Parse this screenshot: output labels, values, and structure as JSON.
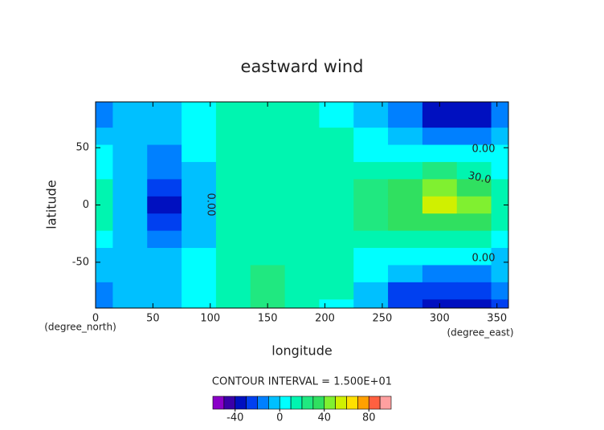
{
  "chart_data": {
    "type": "contour",
    "title": "eastward wind",
    "x_label": "longitude",
    "y_label": "latitude",
    "x_units": "(degree_east)",
    "y_units": "(degree_north)",
    "contour_interval": "CONTOUR INTERVAL = 1.500E+01",
    "x": [
      0,
      30,
      60,
      90,
      120,
      150,
      180,
      210,
      240,
      270,
      300,
      330,
      360
    ],
    "y": [
      90,
      75,
      60,
      45,
      30,
      15,
      0,
      -15,
      -30,
      -45,
      -60,
      -75,
      -90
    ],
    "z": [
      [
        -15,
        -8,
        -5,
        0,
        12,
        15,
        15,
        8,
        -5,
        -20,
        -35,
        -40,
        -20
      ],
      [
        -12,
        -5,
        -5,
        2,
        12,
        18,
        15,
        8,
        -5,
        -18,
        -32,
        -35,
        -18
      ],
      [
        -5,
        -3,
        -8,
        2,
        12,
        18,
        15,
        10,
        0,
        -8,
        -15,
        -15,
        -8
      ],
      [
        0,
        -5,
        -15,
        0,
        12,
        18,
        15,
        12,
        8,
        5,
        2,
        5,
        0
      ],
      [
        5,
        -5,
        -20,
        -5,
        10,
        18,
        15,
        12,
        15,
        18,
        20,
        18,
        8
      ],
      [
        10,
        -5,
        -30,
        -5,
        10,
        18,
        15,
        12,
        20,
        30,
        40,
        35,
        15
      ],
      [
        12,
        -5,
        -35,
        -5,
        10,
        18,
        15,
        12,
        22,
        35,
        55,
        45,
        15
      ],
      [
        10,
        -5,
        -28,
        -5,
        10,
        18,
        15,
        12,
        20,
        30,
        38,
        32,
        12
      ],
      [
        3,
        -5,
        -18,
        -3,
        10,
        18,
        15,
        12,
        15,
        15,
        18,
        15,
        5
      ],
      [
        -5,
        -5,
        -10,
        0,
        12,
        18,
        15,
        12,
        8,
        3,
        0,
        0,
        -5
      ],
      [
        -8,
        -3,
        -5,
        3,
        15,
        20,
        15,
        10,
        0,
        -10,
        -15,
        -15,
        -10
      ],
      [
        -15,
        -8,
        -5,
        5,
        18,
        22,
        18,
        10,
        -5,
        -22,
        -30,
        -30,
        -20
      ],
      [
        -20,
        -10,
        -5,
        5,
        15,
        20,
        15,
        8,
        -8,
        -25,
        -32,
        -32,
        -22
      ]
    ],
    "xlim": [
      0,
      360
    ],
    "ylim": [
      -90,
      90
    ],
    "xticks": [
      0,
      50,
      100,
      150,
      200,
      250,
      300,
      350
    ],
    "yticks": [
      -50,
      0,
      50
    ],
    "contour_labels": [
      "0.00",
      "30.0",
      "0.00",
      "0.00"
    ],
    "colorbar": {
      "levels": [
        -60,
        -50,
        -40,
        -30,
        -20,
        -10,
        0,
        10,
        20,
        30,
        40,
        50,
        60,
        70,
        80,
        90,
        100
      ],
      "colors": [
        "#8a00c8",
        "#3a00a8",
        "#0010c0",
        "#0040f0",
        "#0080ff",
        "#00c0ff",
        "#00ffff",
        "#00f5b0",
        "#20e880",
        "#30e060",
        "#80f030",
        "#d0f000",
        "#ffe000",
        "#ffa000",
        "#ff6040",
        "#ffa0a0"
      ],
      "ticks": [
        -40,
        0,
        40,
        80
      ]
    }
  }
}
